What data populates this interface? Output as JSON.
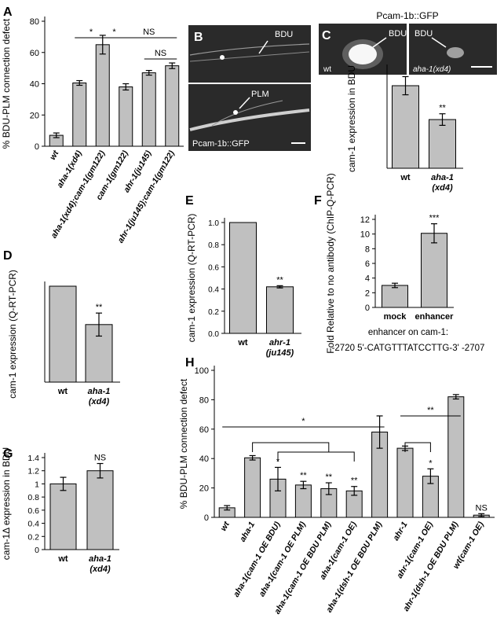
{
  "colors": {
    "bar": "#c0c0c0",
    "micro_bg": "#2b2b2b",
    "micro_fg": "#ffffff"
  },
  "panels": {
    "A": {
      "label": "A"
    },
    "B": {
      "label": "B"
    },
    "C": {
      "label": "C"
    },
    "D": {
      "label": "D"
    },
    "E": {
      "label": "E"
    },
    "F": {
      "label": "F"
    },
    "G": {
      "label": "G"
    },
    "H": {
      "label": "H"
    }
  },
  "images": {
    "B_top_label": "BDU",
    "B_bottom_label": "PLM",
    "B_caption": "Pcam-1b::GFP",
    "C_title": "Pcam-1b::GFP",
    "C_left_label": "BDU",
    "C_right_label": "BDU",
    "C_left_genotype": "wt",
    "C_right_genotype": "aha-1(xd4)"
  },
  "F_extra": {
    "line1": "enhancer on cam-1:",
    "line2": "-2720  5'-CATGTTTATCCTTG-3'  -2707"
  },
  "chart_data": [
    {
      "id": "A",
      "type": "bar",
      "ylabel": "% BDU-PLM connection defect",
      "ylim": [
        0,
        80
      ],
      "yticks": [
        0,
        20,
        40,
        60,
        80
      ],
      "categories": [
        "wt",
        "aha-1(xd4)",
        "aha-1(xd4);cam-1(gm122)",
        "cam-1(gm122)",
        "ahr-1(ju145)",
        "ahr-1(ju145);cam-1(gm122)"
      ],
      "values": [
        7,
        40.5,
        65,
        38,
        47,
        51.5
      ],
      "errors": [
        1.5,
        1.5,
        6,
        2,
        1.5,
        1.8
      ],
      "annotations": [
        {
          "text": "*",
          "from": 1,
          "to": 2
        },
        {
          "text": "*",
          "from": 2,
          "to": 3
        },
        {
          "text": "NS",
          "from": 3,
          "to": 5
        },
        {
          "text": "NS",
          "from": 4,
          "to": 5
        }
      ]
    },
    {
      "id": "C",
      "type": "bar",
      "ylabel": "cam-1 expression in BDU",
      "ylim": [
        0,
        1.2
      ],
      "yticks": [],
      "categories": [
        "wt",
        "aha-1 (xd4)"
      ],
      "values": [
        1.0,
        0.59
      ],
      "errors": [
        0.11,
        0.07
      ],
      "sig": [
        "",
        "**"
      ]
    },
    {
      "id": "D",
      "type": "bar",
      "ylabel": "cam-1 expression (Q-RT-PCR)",
      "ylim": [
        0,
        1.0
      ],
      "yticks": [],
      "categories": [
        "wt",
        "aha-1 (xd4)"
      ],
      "values": [
        1.0,
        0.6
      ],
      "errors": [
        0,
        0.12
      ],
      "sig": [
        "",
        "**"
      ]
    },
    {
      "id": "E",
      "type": "bar",
      "ylabel": "cam-1 expression (Q-RT-PCR)",
      "ylim": [
        0,
        1.0
      ],
      "yticks": [
        0.0,
        0.2,
        0.4,
        0.6,
        0.8,
        1.0
      ],
      "ytick_labels": [
        "0.0",
        "0.2",
        "0.4",
        "0.6",
        "0.8",
        "1.0"
      ],
      "categories": [
        "wt",
        "ahr-1 (ju145)"
      ],
      "values": [
        1.0,
        0.42
      ],
      "errors": [
        0,
        0.01
      ],
      "sig": [
        "",
        "**"
      ]
    },
    {
      "id": "F",
      "type": "bar",
      "ylabel": "Fold Relative to no antibody (ChIP-Q-PCR)",
      "ylim": [
        0,
        12
      ],
      "yticks": [
        0,
        2,
        4,
        6,
        8,
        10,
        12
      ],
      "categories": [
        "mock",
        "enhancer"
      ],
      "values": [
        3.0,
        10.1
      ],
      "errors": [
        0.3,
        1.3
      ],
      "sig": [
        "",
        "***"
      ]
    },
    {
      "id": "G",
      "type": "bar",
      "ylabel": "cam-1Δ expression in BDU",
      "ylim": [
        0,
        1.4
      ],
      "yticks": [
        0,
        0.2,
        0.4,
        0.6,
        0.8,
        1.0,
        1.2,
        1.4
      ],
      "ytick_labels": [
        "0",
        "0.2",
        "0.4",
        "0.6",
        "0.8",
        "1",
        "1.2",
        "1.4"
      ],
      "categories": [
        "wt",
        "aha-1 (xd4)"
      ],
      "values": [
        1.0,
        1.2
      ],
      "errors": [
        0.1,
        0.11
      ],
      "sig": [
        "",
        "NS"
      ]
    },
    {
      "id": "H",
      "type": "bar",
      "ylabel": "% BDU-PLM connection defect",
      "ylim": [
        0,
        100
      ],
      "yticks": [
        0,
        20,
        40,
        60,
        80,
        100
      ],
      "categories": [
        "wt",
        "aha-1",
        "aha-1(cam-1 OE BDU)",
        "aha-1(cam-1 OE PLM)",
        "aha-1(cam-1 OE BDU PLM)",
        "aha-1(cam-1 OE)",
        "aha-1(dsh-1 OE BDU PLM)",
        "ahr-1",
        "ahr-1(cam-1 OE)",
        "ahr-1(dsh-1 OE BDU PLM)",
        "wt(cam-1 OE)"
      ],
      "values": [
        6.5,
        40.5,
        26,
        22,
        19.5,
        18,
        58,
        47,
        28,
        82,
        1.5
      ],
      "errors": [
        1.5,
        1.5,
        8,
        2.5,
        4,
        3,
        11,
        1.5,
        5,
        1.5,
        1
      ],
      "sig": [
        "",
        "",
        "*",
        "**",
        "**",
        "**",
        "",
        "",
        "*",
        "",
        "NS"
      ],
      "annotations": [
        {
          "text": "*",
          "from": 0,
          "to": 6
        },
        {
          "text": "**",
          "from": 7,
          "to": 9
        }
      ]
    }
  ]
}
